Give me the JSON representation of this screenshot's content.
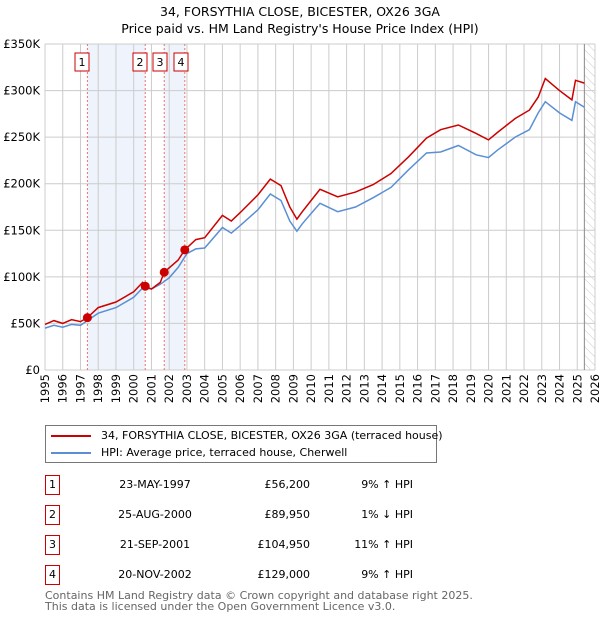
{
  "chart_data": {
    "type": "line",
    "title": "34, FORSYTHIA CLOSE, BICESTER, OX26 3GA",
    "subtitle": "Price paid vs. HM Land Registry's House Price Index (HPI)",
    "xlim": [
      1995,
      2026
    ],
    "ylim": [
      0,
      350000
    ],
    "y_ticks": [
      0,
      50000,
      100000,
      150000,
      200000,
      250000,
      300000,
      350000
    ],
    "y_tick_labels": [
      "£0",
      "£50K",
      "£100K",
      "£150K",
      "£200K",
      "£250K",
      "£300K",
      "£350K"
    ],
    "x_ticks": [
      "1995",
      "1996",
      "1997",
      "1998",
      "1999",
      "2000",
      "2001",
      "2002",
      "2003",
      "2004",
      "2005",
      "2006",
      "2007",
      "2008",
      "2009",
      "2010",
      "2011",
      "2012",
      "2013",
      "2014",
      "2015",
      "2016",
      "2017",
      "2018",
      "2019",
      "2020",
      "2021",
      "2022",
      "2023",
      "2024",
      "2025",
      "2026"
    ],
    "grid": true,
    "forecast_hatch_from": 2025.4,
    "series": [
      {
        "name": "34, FORSYTHIA CLOSE, BICESTER, OX26 3GA (terraced house)",
        "color": "#cc0000",
        "x": [
          1995,
          1995.5,
          1996,
          1996.5,
          1997,
          1997.39,
          1998,
          1999,
          2000,
          2000.5,
          2000.65,
          2001,
          2001.5,
          2001.72,
          2002.5,
          2002.88,
          2003.5,
          2004,
          2005,
          2005.5,
          2006,
          2007,
          2007.7,
          2008.3,
          2008.8,
          2009.2,
          2009.5,
          2010,
          2010.5,
          2011.5,
          2012.5,
          2013.5,
          2014.5,
          2015.5,
          2016.5,
          2017.3,
          2018.3,
          2019.3,
          2020,
          2020.5,
          2021.5,
          2022.3,
          2022.8,
          2023.2,
          2024,
          2024.7,
          2024.9,
          2025.4
        ],
        "values": [
          49000,
          53000,
          50000,
          54000,
          52000,
          56200,
          67000,
          73000,
          84000,
          94000,
          89950,
          87000,
          94000,
          104950,
          118000,
          129000,
          140000,
          142000,
          166000,
          160000,
          169000,
          188000,
          205000,
          198000,
          175000,
          162000,
          170000,
          182000,
          194000,
          186000,
          191000,
          199000,
          211000,
          229000,
          249000,
          258000,
          263000,
          254000,
          247000,
          255000,
          270000,
          279000,
          293000,
          313000,
          300000,
          290000,
          311000,
          308000
        ]
      },
      {
        "name": "HPI: Average price, terraced house, Cherwell",
        "color": "#5b8fd4",
        "x": [
          1995,
          1995.5,
          1996,
          1996.5,
          1997,
          1997.39,
          1998,
          1999,
          2000,
          2000.5,
          2001,
          2001.5,
          2002,
          2002.5,
          2003,
          2003.5,
          2004,
          2005,
          2005.5,
          2006,
          2007,
          2007.7,
          2008.3,
          2008.8,
          2009.2,
          2009.5,
          2010,
          2010.5,
          2011.5,
          2012.5,
          2013.5,
          2014.5,
          2015.5,
          2016.5,
          2017.3,
          2018.3,
          2019.3,
          2020,
          2020.5,
          2021.5,
          2022.3,
          2022.8,
          2023.2,
          2024,
          2024.7,
          2024.9,
          2025.4
        ],
        "values": [
          45000,
          48000,
          46000,
          49000,
          48000,
          53000,
          61000,
          67000,
          78000,
          88000,
          87000,
          92000,
          99000,
          110000,
          125000,
          130000,
          131000,
          153000,
          147000,
          155000,
          172000,
          189000,
          182000,
          160000,
          149000,
          157000,
          168000,
          179000,
          170000,
          175000,
          185000,
          196000,
          215000,
          233000,
          234000,
          241000,
          231000,
          228000,
          236000,
          250000,
          258000,
          276000,
          288000,
          276000,
          268000,
          288000,
          282000
        ]
      }
    ],
    "sales": [
      {
        "label": "1",
        "x": 1997.39,
        "value": 56200,
        "date": "23-MAY-1997",
        "price": "£56,200",
        "hpi": "9% ↑ HPI"
      },
      {
        "label": "2",
        "x": 2000.65,
        "value": 89950,
        "date": "25-AUG-2000",
        "price": "£89,950",
        "hpi": "1% ↓ HPI"
      },
      {
        "label": "3",
        "x": 2001.72,
        "value": 104950,
        "date": "21-SEP-2001",
        "price": "£104,950",
        "hpi": "11% ↑ HPI"
      },
      {
        "label": "4",
        "x": 2002.88,
        "value": 129000,
        "date": "20-NOV-2002",
        "price": "£129,000",
        "hpi": "9% ↑ HPI"
      }
    ],
    "shaded_spans": [
      [
        1997.39,
        2000.65
      ],
      [
        2001.72,
        2002.88
      ]
    ],
    "legend_placement": "below"
  },
  "footer": {
    "line1": "Contains HM Land Registry data © Crown copyright and database right 2025.",
    "line2": "This data is licensed under the Open Government Licence v3.0."
  }
}
